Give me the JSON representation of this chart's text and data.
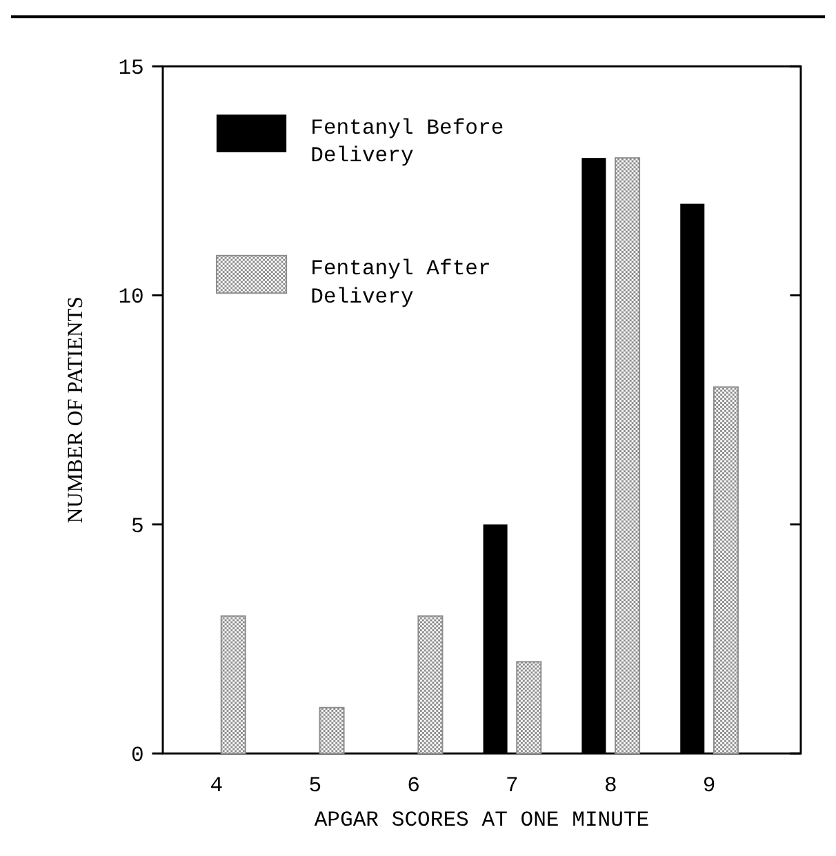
{
  "chart_data": {
    "type": "bar",
    "xlabel": "APGAR SCORES AT ONE MINUTE",
    "ylabel": "NUMBER OF PATIENTS",
    "categories": [
      "4",
      "5",
      "6",
      "7",
      "8",
      "9"
    ],
    "series": [
      {
        "name": "Fentanyl Before Delivery",
        "color": "#000000",
        "values": [
          0,
          0,
          0,
          5,
          13,
          12
        ]
      },
      {
        "name": "Fentanyl After Delivery",
        "color": "#8c8c8c",
        "values": [
          3,
          1,
          3,
          2,
          13,
          8
        ]
      }
    ],
    "ylim": [
      0,
      15
    ],
    "yticks": [
      0,
      5,
      10,
      15
    ],
    "legend": "top left"
  }
}
